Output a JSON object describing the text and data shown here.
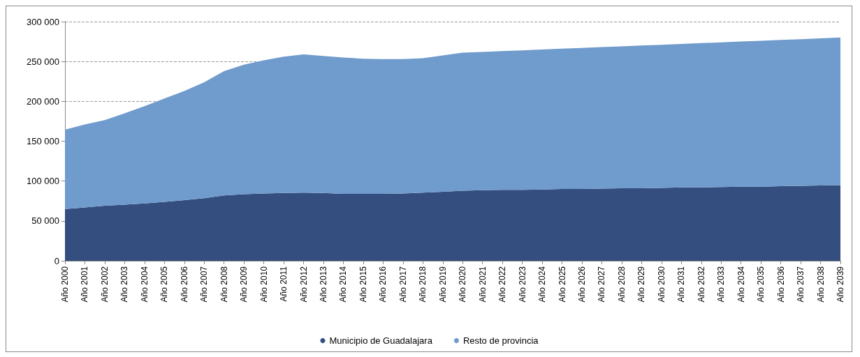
{
  "chart_data": {
    "type": "area",
    "stacked": true,
    "grid": "y",
    "legend": "bottom",
    "categories": [
      "Año 2000",
      "Año 2001",
      "Año 2002",
      "Año 2003",
      "Año 2004",
      "Año 2005",
      "Año 2006",
      "Año 2007",
      "Año 2008",
      "Año 2009",
      "Año 2010",
      "Año 2011",
      "Año 2012",
      "Año 2013",
      "Año 2014",
      "Año 2015",
      "Año 2016",
      "Año 2017",
      "Año 2018",
      "Año 2019",
      "Año 2020",
      "Año 2021",
      "Año 2022",
      "Año 2023",
      "Año 2024",
      "Año 2025",
      "Año 2026",
      "Año 2027",
      "Año 2028",
      "Año 2029",
      "Año 2030",
      "Año 2031",
      "Año 2032",
      "Año 2033",
      "Año 2034",
      "Año 2035",
      "Año 2036",
      "Año 2037",
      "Año 2038",
      "Año 2039"
    ],
    "ylim": [
      0,
      300000
    ],
    "yticks": [
      0,
      {
        "value": 50000,
        "label": "50 000"
      },
      {
        "value": 100000,
        "label": "100 000"
      },
      {
        "value": 150000,
        "label": "150 000"
      },
      {
        "value": 200000,
        "label": "200 000"
      },
      {
        "value": 250000,
        "label": "250 000"
      },
      {
        "value": 300000,
        "label": "300 000"
      }
    ],
    "series": [
      {
        "name": "Municipio de Guadalajara",
        "color": "#344e80",
        "values": [
          65000,
          67000,
          69000,
          70500,
          72000,
          74000,
          76000,
          78500,
          82000,
          83500,
          84500,
          85000,
          85500,
          85000,
          84000,
          84000,
          84000,
          84500,
          85500,
          86500,
          88000,
          88500,
          89000,
          89000,
          89500,
          90000,
          90000,
          90500,
          91000,
          91000,
          91500,
          92000,
          92000,
          92500,
          93000,
          93000,
          93500,
          94000,
          94500,
          95000
        ]
      },
      {
        "name": "Resto de provincia",
        "color": "#709bcd",
        "values": [
          99500,
          104000,
          107500,
          114500,
          122000,
          129500,
          137000,
          145500,
          156000,
          162500,
          167000,
          171000,
          173500,
          172000,
          171000,
          169500,
          169000,
          168500,
          168500,
          171000,
          173000,
          173500,
          174000,
          175000,
          175500,
          176000,
          177000,
          177500,
          178000,
          179000,
          179500,
          180000,
          181000,
          181500,
          182000,
          183000,
          183500,
          184000,
          184500,
          185000
        ]
      }
    ]
  }
}
